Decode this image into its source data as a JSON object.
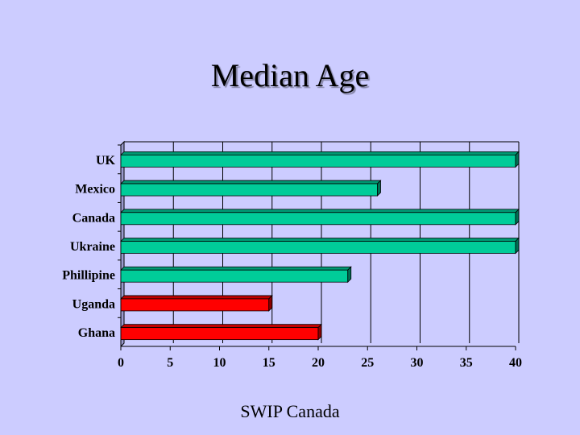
{
  "slide": {
    "title": "Median Age",
    "footer": "SWIP Canada"
  },
  "colors": {
    "background": "#ccccff",
    "bar_green": "#00cc99",
    "bar_red": "#ff0000"
  },
  "chart_data": {
    "type": "bar",
    "orientation": "horizontal",
    "title": "Median Age",
    "categories": [
      "UK",
      "Mexico",
      "Canada",
      "Ukraine",
      "Phillipine",
      "Uganda",
      "Ghana"
    ],
    "values": [
      40,
      26,
      40,
      40,
      23,
      15,
      20
    ],
    "bar_colors": [
      "#00cc99",
      "#00cc99",
      "#00cc99",
      "#00cc99",
      "#00cc99",
      "#ff0000",
      "#ff0000"
    ],
    "xlim": [
      0,
      40
    ],
    "xticks": [
      0,
      5,
      10,
      15,
      20,
      25,
      30,
      35,
      40
    ],
    "grid": true,
    "style": "3d"
  }
}
